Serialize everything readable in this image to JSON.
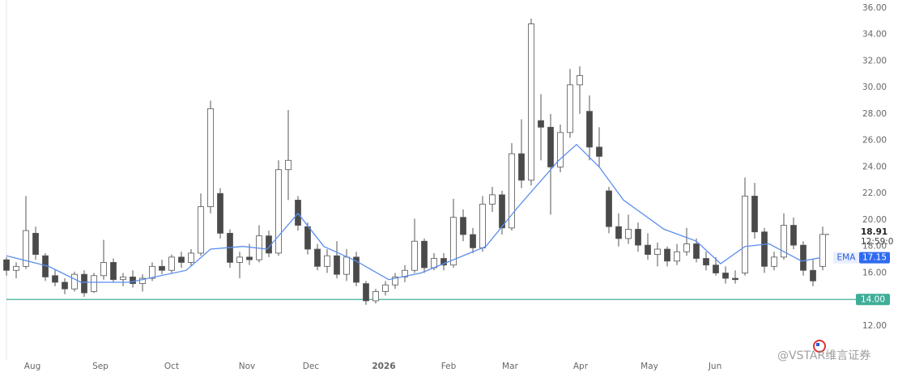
{
  "chart_data": {
    "type": "candlestick",
    "xlim": [
      0,
      87.25
    ],
    "xticks": [
      {
        "value": 2.67,
        "label": "Aug"
      },
      {
        "value": 9.67,
        "label": "Sep"
      },
      {
        "value": 17,
        "label": "Oct"
      },
      {
        "value": 24.75,
        "label": "Nov"
      },
      {
        "value": 31.33,
        "label": "Dec"
      },
      {
        "value": 38.83,
        "label": "2026"
      },
      {
        "value": 45.5,
        "label": "Feb"
      },
      {
        "value": 51.83,
        "label": "Mar"
      },
      {
        "value": 59.08,
        "label": "Apr"
      },
      {
        "value": 66.17,
        "label": "May"
      },
      {
        "value": 72.92,
        "label": "Jun"
      }
    ],
    "ylim": [
      9.44,
      36.6
    ],
    "yticks": [
      {
        "value": 12,
        "label": "12.00"
      },
      {
        "value": 14,
        "label": "14.00"
      },
      {
        "value": 16,
        "label": "16.00"
      },
      {
        "value": 18,
        "label": "18.00"
      },
      {
        "value": 20,
        "label": "20.00"
      },
      {
        "value": 22,
        "label": "22.00"
      },
      {
        "value": 24,
        "label": "24.00"
      },
      {
        "value": 26,
        "label": "26.00"
      },
      {
        "value": 28,
        "label": "28.00"
      },
      {
        "value": 30,
        "label": "30.00"
      },
      {
        "value": 32,
        "label": "32.00"
      },
      {
        "value": 34,
        "label": "34.00"
      },
      {
        "value": 36,
        "label": "36.00"
      }
    ],
    "grid": false,
    "up_color": "#ffffff",
    "down_color": "#4a4a4a",
    "wick_color": "#555555",
    "x": [
      0,
      1,
      2,
      3,
      4,
      5,
      6,
      7,
      8,
      9,
      10,
      11,
      12,
      13,
      14,
      15,
      16,
      17,
      18,
      19,
      20,
      21,
      22,
      23,
      24,
      25,
      26,
      27,
      28,
      29,
      30,
      31,
      32,
      33,
      34,
      35,
      36,
      37,
      38,
      39,
      40,
      41,
      42,
      43,
      44,
      45,
      46,
      47,
      48,
      49,
      50,
      51,
      52,
      53,
      54,
      55,
      56,
      57,
      58,
      59,
      60,
      61,
      62,
      63,
      64,
      65,
      66,
      67,
      68,
      69,
      70,
      71,
      72,
      73,
      74,
      75,
      76,
      77,
      78,
      79,
      80,
      81,
      82,
      83,
      84
    ],
    "open": [
      17.0,
      16.2,
      16.5,
      19.0,
      17.3,
      15.8,
      15.3,
      14.8,
      15.9,
      14.6,
      15.8,
      16.8,
      15.5,
      15.7,
      15.2,
      15.6,
      16.5,
      16.2,
      17.2,
      16.8,
      17.5,
      21.0,
      22.0,
      19.0,
      16.8,
      17.2,
      17.0,
      18.8,
      17.5,
      23.8,
      21.5,
      19.5,
      17.8,
      16.5,
      17.3,
      15.9,
      17.2,
      15.2,
      13.9,
      14.6,
      15.1,
      15.7,
      16.2,
      18.4,
      16.4,
      17.1,
      16.6,
      20.2,
      18.9,
      17.9,
      21.2,
      21.9,
      19.4,
      25.0,
      23.0,
      27.5,
      27.0,
      24.0,
      26.6,
      30.2,
      28.2,
      25.5,
      22.2,
      19.5,
      18.6,
      19.3,
      18.1,
      17.4,
      17.8,
      16.9,
      17.6,
      18.2,
      17.1,
      16.6,
      16.0,
      15.6,
      16.0,
      21.8,
      19.1,
      16.5,
      17.2,
      19.6,
      18.1,
      16.2,
      16.5
    ],
    "high": [
      17.2,
      16.8,
      21.8,
      19.5,
      17.5,
      16.3,
      15.6,
      16.1,
      16.2,
      16.0,
      18.5,
      17.1,
      16.0,
      16.2,
      15.9,
      16.8,
      17.0,
      17.4,
      17.6,
      17.8,
      22.0,
      29.0,
      22.4,
      19.3,
      17.6,
      18.2,
      19.6,
      19.2,
      24.5,
      28.3,
      21.8,
      19.8,
      18.2,
      17.8,
      18.4,
      17.8,
      17.6,
      15.4,
      14.8,
      15.4,
      16.0,
      16.6,
      20.1,
      18.6,
      17.5,
      17.5,
      21.6,
      20.8,
      19.4,
      21.8,
      22.5,
      22.2,
      25.8,
      27.6,
      35.2,
      29.5,
      28.0,
      27.2,
      31.4,
      31.6,
      29.4,
      27.0,
      22.5,
      20.5,
      20.4,
      19.8,
      19.0,
      18.3,
      18.0,
      18.2,
      19.4,
      18.6,
      17.6,
      17.2,
      16.5,
      16.2,
      23.2,
      22.8,
      19.4,
      17.6,
      20.5,
      20.2,
      18.4,
      17.0,
      19.5
    ],
    "low": [
      15.8,
      15.6,
      16.3,
      17.0,
      15.4,
      15.0,
      14.4,
      14.6,
      14.2,
      14.5,
      15.5,
      15.3,
      15.0,
      14.9,
      14.6,
      15.4,
      15.9,
      16.0,
      16.4,
      16.5,
      17.3,
      20.5,
      18.6,
      16.4,
      15.6,
      16.6,
      16.8,
      17.2,
      17.3,
      21.5,
      19.2,
      17.4,
      16.2,
      16.0,
      15.6,
      15.4,
      15.0,
      13.6,
      13.7,
      14.3,
      14.8,
      15.3,
      16.0,
      16.0,
      16.2,
      16.2,
      16.4,
      18.4,
      17.5,
      17.6,
      20.6,
      18.9,
      19.2,
      22.4,
      22.6,
      24.5,
      20.4,
      23.6,
      26.2,
      28.0,
      24.5,
      24.0,
      19.0,
      18.0,
      18.2,
      17.6,
      17.0,
      16.5,
      16.5,
      16.6,
      17.3,
      16.8,
      16.2,
      15.8,
      15.2,
      15.2,
      15.8,
      18.6,
      16.0,
      16.2,
      17.0,
      17.8,
      15.8,
      15.0,
      16.2
    ],
    "close": [
      16.2,
      16.5,
      19.2,
      17.4,
      15.7,
      15.3,
      14.8,
      15.9,
      14.5,
      15.8,
      16.8,
      15.5,
      15.7,
      15.2,
      15.6,
      16.5,
      16.2,
      17.2,
      16.8,
      17.5,
      21.0,
      28.4,
      19.0,
      16.8,
      17.2,
      17.0,
      18.8,
      17.5,
      23.8,
      24.5,
      19.6,
      17.8,
      16.5,
      17.3,
      15.9,
      17.2,
      15.3,
      13.9,
      14.6,
      15.1,
      15.7,
      16.2,
      18.4,
      16.4,
      17.1,
      16.6,
      20.2,
      18.9,
      17.9,
      21.2,
      21.9,
      19.4,
      25.0,
      23.0,
      34.8,
      27.0,
      24.0,
      26.6,
      30.2,
      30.9,
      25.5,
      24.8,
      19.5,
      18.6,
      19.3,
      18.1,
      17.4,
      17.8,
      16.9,
      17.6,
      18.2,
      17.1,
      16.6,
      16.0,
      15.6,
      15.5,
      21.8,
      19.1,
      16.5,
      17.2,
      19.6,
      18.1,
      16.2,
      15.4,
      18.91
    ],
    "countdown": "12:59:0",
    "ema": {
      "name": "EMA",
      "color": "#5b8def",
      "x": [
        0,
        4.33,
        7.67,
        12.67,
        18.5,
        21,
        24.33,
        26.83,
        30,
        32.67,
        36,
        39.33,
        42.67,
        46,
        49.33,
        52.67,
        56.83,
        58.67,
        61,
        63.5,
        67.67,
        71,
        73.5,
        76,
        78.5,
        81.83,
        83.75
      ],
      "values": [
        17.3,
        16.5,
        15.3,
        15.3,
        16.2,
        17.8,
        18.0,
        17.8,
        20.5,
        18.0,
        16.9,
        15.5,
        16.0,
        17.0,
        18.0,
        21.0,
        24.5,
        25.7,
        24.0,
        21.5,
        19.3,
        18.4,
        16.7,
        18.0,
        18.2,
        16.9,
        17.15
      ]
    },
    "hline": {
      "value": 14,
      "label": "14.00",
      "color": "#3fae98"
    },
    "watermark": "@VSTAR维言证券"
  }
}
